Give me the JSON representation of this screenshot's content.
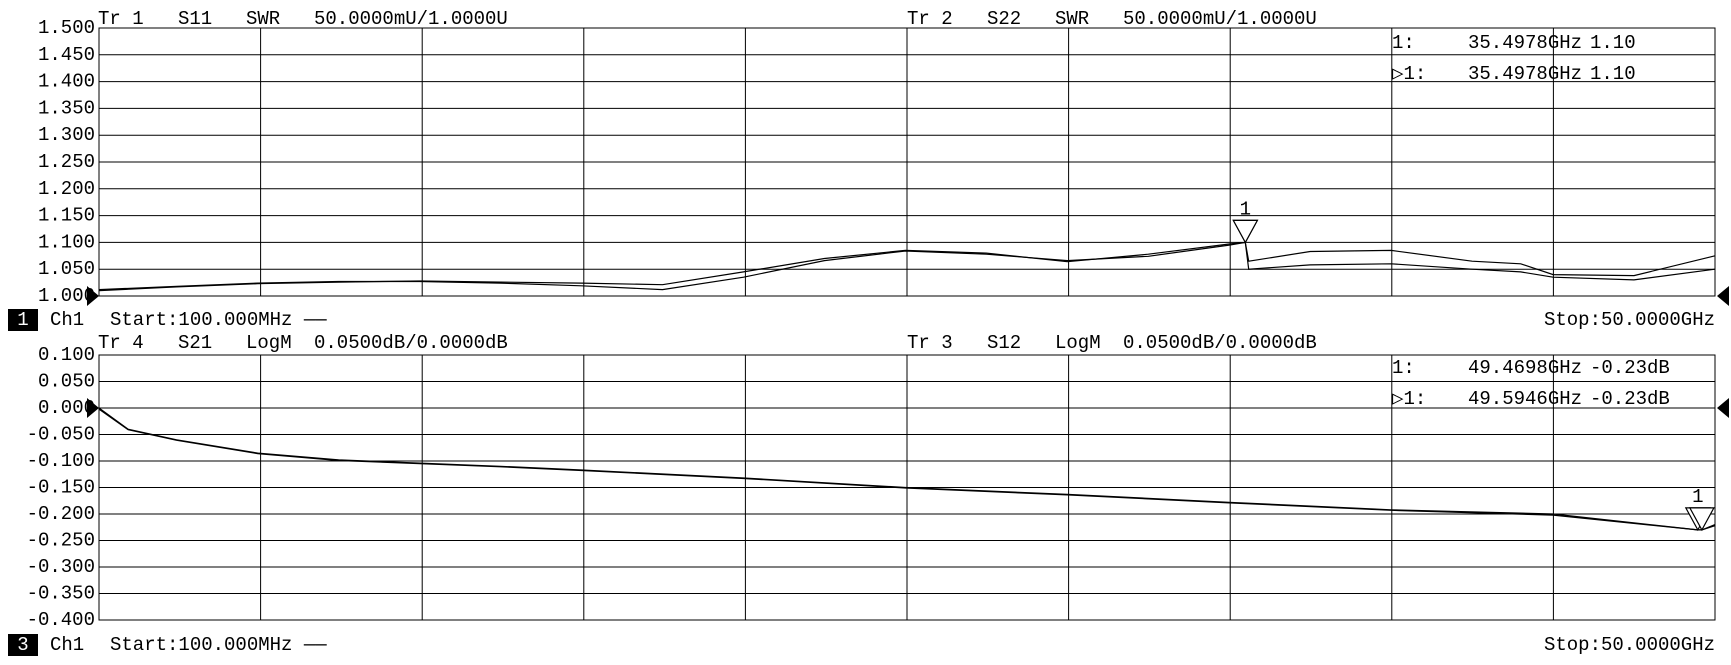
{
  "chart_data": [
    {
      "type": "line",
      "traces": [
        {
          "trace": "Tr 1",
          "name": "S11",
          "format": "SWR",
          "scale": "50.0000mU/1.0000U"
        },
        {
          "trace": "Tr 2",
          "name": "S22",
          "format": "SWR",
          "scale": "50.0000mU/1.0000U"
        }
      ],
      "x": [
        0.1,
        2.5,
        5,
        7.5,
        10,
        12.5,
        15,
        17.5,
        20,
        22.5,
        25,
        27.5,
        30,
        32.5,
        35,
        35.4978,
        35.6,
        37.5,
        40,
        42.5,
        44,
        45,
        47.5,
        50
      ],
      "xlim": [
        0.1,
        50
      ],
      "series": [
        {
          "name": "S11",
          "color": "#000000",
          "values": [
            1.012,
            1.018,
            1.024,
            1.027,
            1.027,
            1.024,
            1.019,
            1.012,
            1.035,
            1.066,
            1.084,
            1.078,
            1.066,
            1.074,
            1.095,
            1.1,
            1.05,
            1.058,
            1.06,
            1.05,
            1.045,
            1.035,
            1.03,
            1.05
          ]
        },
        {
          "name": "S22",
          "color": "#000000",
          "values": [
            1.01,
            1.017,
            1.023,
            1.026,
            1.028,
            1.026,
            1.024,
            1.021,
            1.045,
            1.07,
            1.085,
            1.08,
            1.064,
            1.078,
            1.097,
            1.1,
            1.065,
            1.083,
            1.085,
            1.065,
            1.06,
            1.04,
            1.038,
            1.075
          ]
        }
      ],
      "ylim": [
        1,
        1.5
      ],
      "yticks": [
        {
          "value": 1.5,
          "label": "1.500"
        },
        {
          "value": 1.45,
          "label": "1.450"
        },
        {
          "value": 1.4,
          "label": "1.400"
        },
        {
          "value": 1.35,
          "label": "1.350"
        },
        {
          "value": 1.3,
          "label": "1.300"
        },
        {
          "value": 1.25,
          "label": "1.250"
        },
        {
          "value": 1.2,
          "label": "1.200"
        },
        {
          "value": 1.15,
          "label": "1.150"
        },
        {
          "value": 1.1,
          "label": "1.100"
        },
        {
          "value": 1.05,
          "label": "1.050"
        },
        {
          "value": 1,
          "label": "1.000"
        }
      ],
      "ref_level": 1,
      "marker_flag": "1",
      "markers": [
        {
          "label": "1:",
          "x": 35.4978,
          "x_label": "35.4978GHz",
          "value": 1.1,
          "value_label": "1.10"
        },
        {
          "label": "▷1:",
          "x": 35.4978,
          "x_label": "35.4978GHz",
          "value": 1.1,
          "value_label": "1.10"
        }
      ],
      "channel_number": "1",
      "channel": "Ch1",
      "start": "Start:100.000MHz ——",
      "stop": "Stop:50.0000GHz"
    },
    {
      "type": "line",
      "traces": [
        {
          "trace": "Tr 4",
          "name": "S21",
          "format": "LogM",
          "scale": "0.0500dB/0.0000dB"
        },
        {
          "trace": "Tr 3",
          "name": "S12",
          "format": "LogM",
          "scale": "0.0500dB/0.0000dB"
        }
      ],
      "x": [
        0.1,
        1,
        2.5,
        5,
        7.5,
        10,
        12.5,
        15,
        20,
        25,
        30,
        35,
        40,
        45,
        49.4698,
        49.5946,
        50
      ],
      "xlim": [
        0.1,
        50
      ],
      "series": [
        {
          "name": "S21",
          "color": "#000000",
          "values": [
            0,
            -0.04,
            -0.06,
            -0.085,
            -0.098,
            -0.104,
            -0.11,
            -0.117,
            -0.132,
            -0.15,
            -0.163,
            -0.178,
            -0.192,
            -0.2,
            -0.23,
            -0.23,
            -0.22
          ]
        },
        {
          "name": "S12",
          "color": "#000000",
          "values": [
            -0.002,
            -0.041,
            -0.061,
            -0.086,
            -0.099,
            -0.105,
            -0.111,
            -0.118,
            -0.133,
            -0.151,
            -0.164,
            -0.179,
            -0.193,
            -0.202,
            -0.23,
            -0.23,
            -0.222
          ]
        }
      ],
      "ylim": [
        -0.4,
        0.1
      ],
      "yticks": [
        {
          "value": 0.1,
          "label": "0.100"
        },
        {
          "value": 0.05,
          "label": "0.050"
        },
        {
          "value": 0,
          "label": "0.000"
        },
        {
          "value": -0.05,
          "label": "-0.050"
        },
        {
          "value": -0.1,
          "label": "-0.100"
        },
        {
          "value": -0.15,
          "label": "-0.150"
        },
        {
          "value": -0.2,
          "label": "-0.200"
        },
        {
          "value": -0.25,
          "label": "-0.250"
        },
        {
          "value": -0.3,
          "label": "-0.300"
        },
        {
          "value": -0.35,
          "label": "-0.350"
        },
        {
          "value": -0.4,
          "label": "-0.400"
        }
      ],
      "ref_level": 0,
      "marker_flag": "1",
      "markers": [
        {
          "label": "1:",
          "x": 49.4698,
          "x_label": "49.4698GHz",
          "value": -0.23,
          "value_label": "-0.23dB"
        },
        {
          "label": "▷1:",
          "x": 49.5946,
          "x_label": "49.5946GHz",
          "value": -0.23,
          "value_label": "-0.23dB"
        }
      ],
      "channel_number": "3",
      "channel": "Ch1",
      "start": "Start:100.000MHz ——",
      "stop": "Stop:50.0000GHz"
    }
  ]
}
